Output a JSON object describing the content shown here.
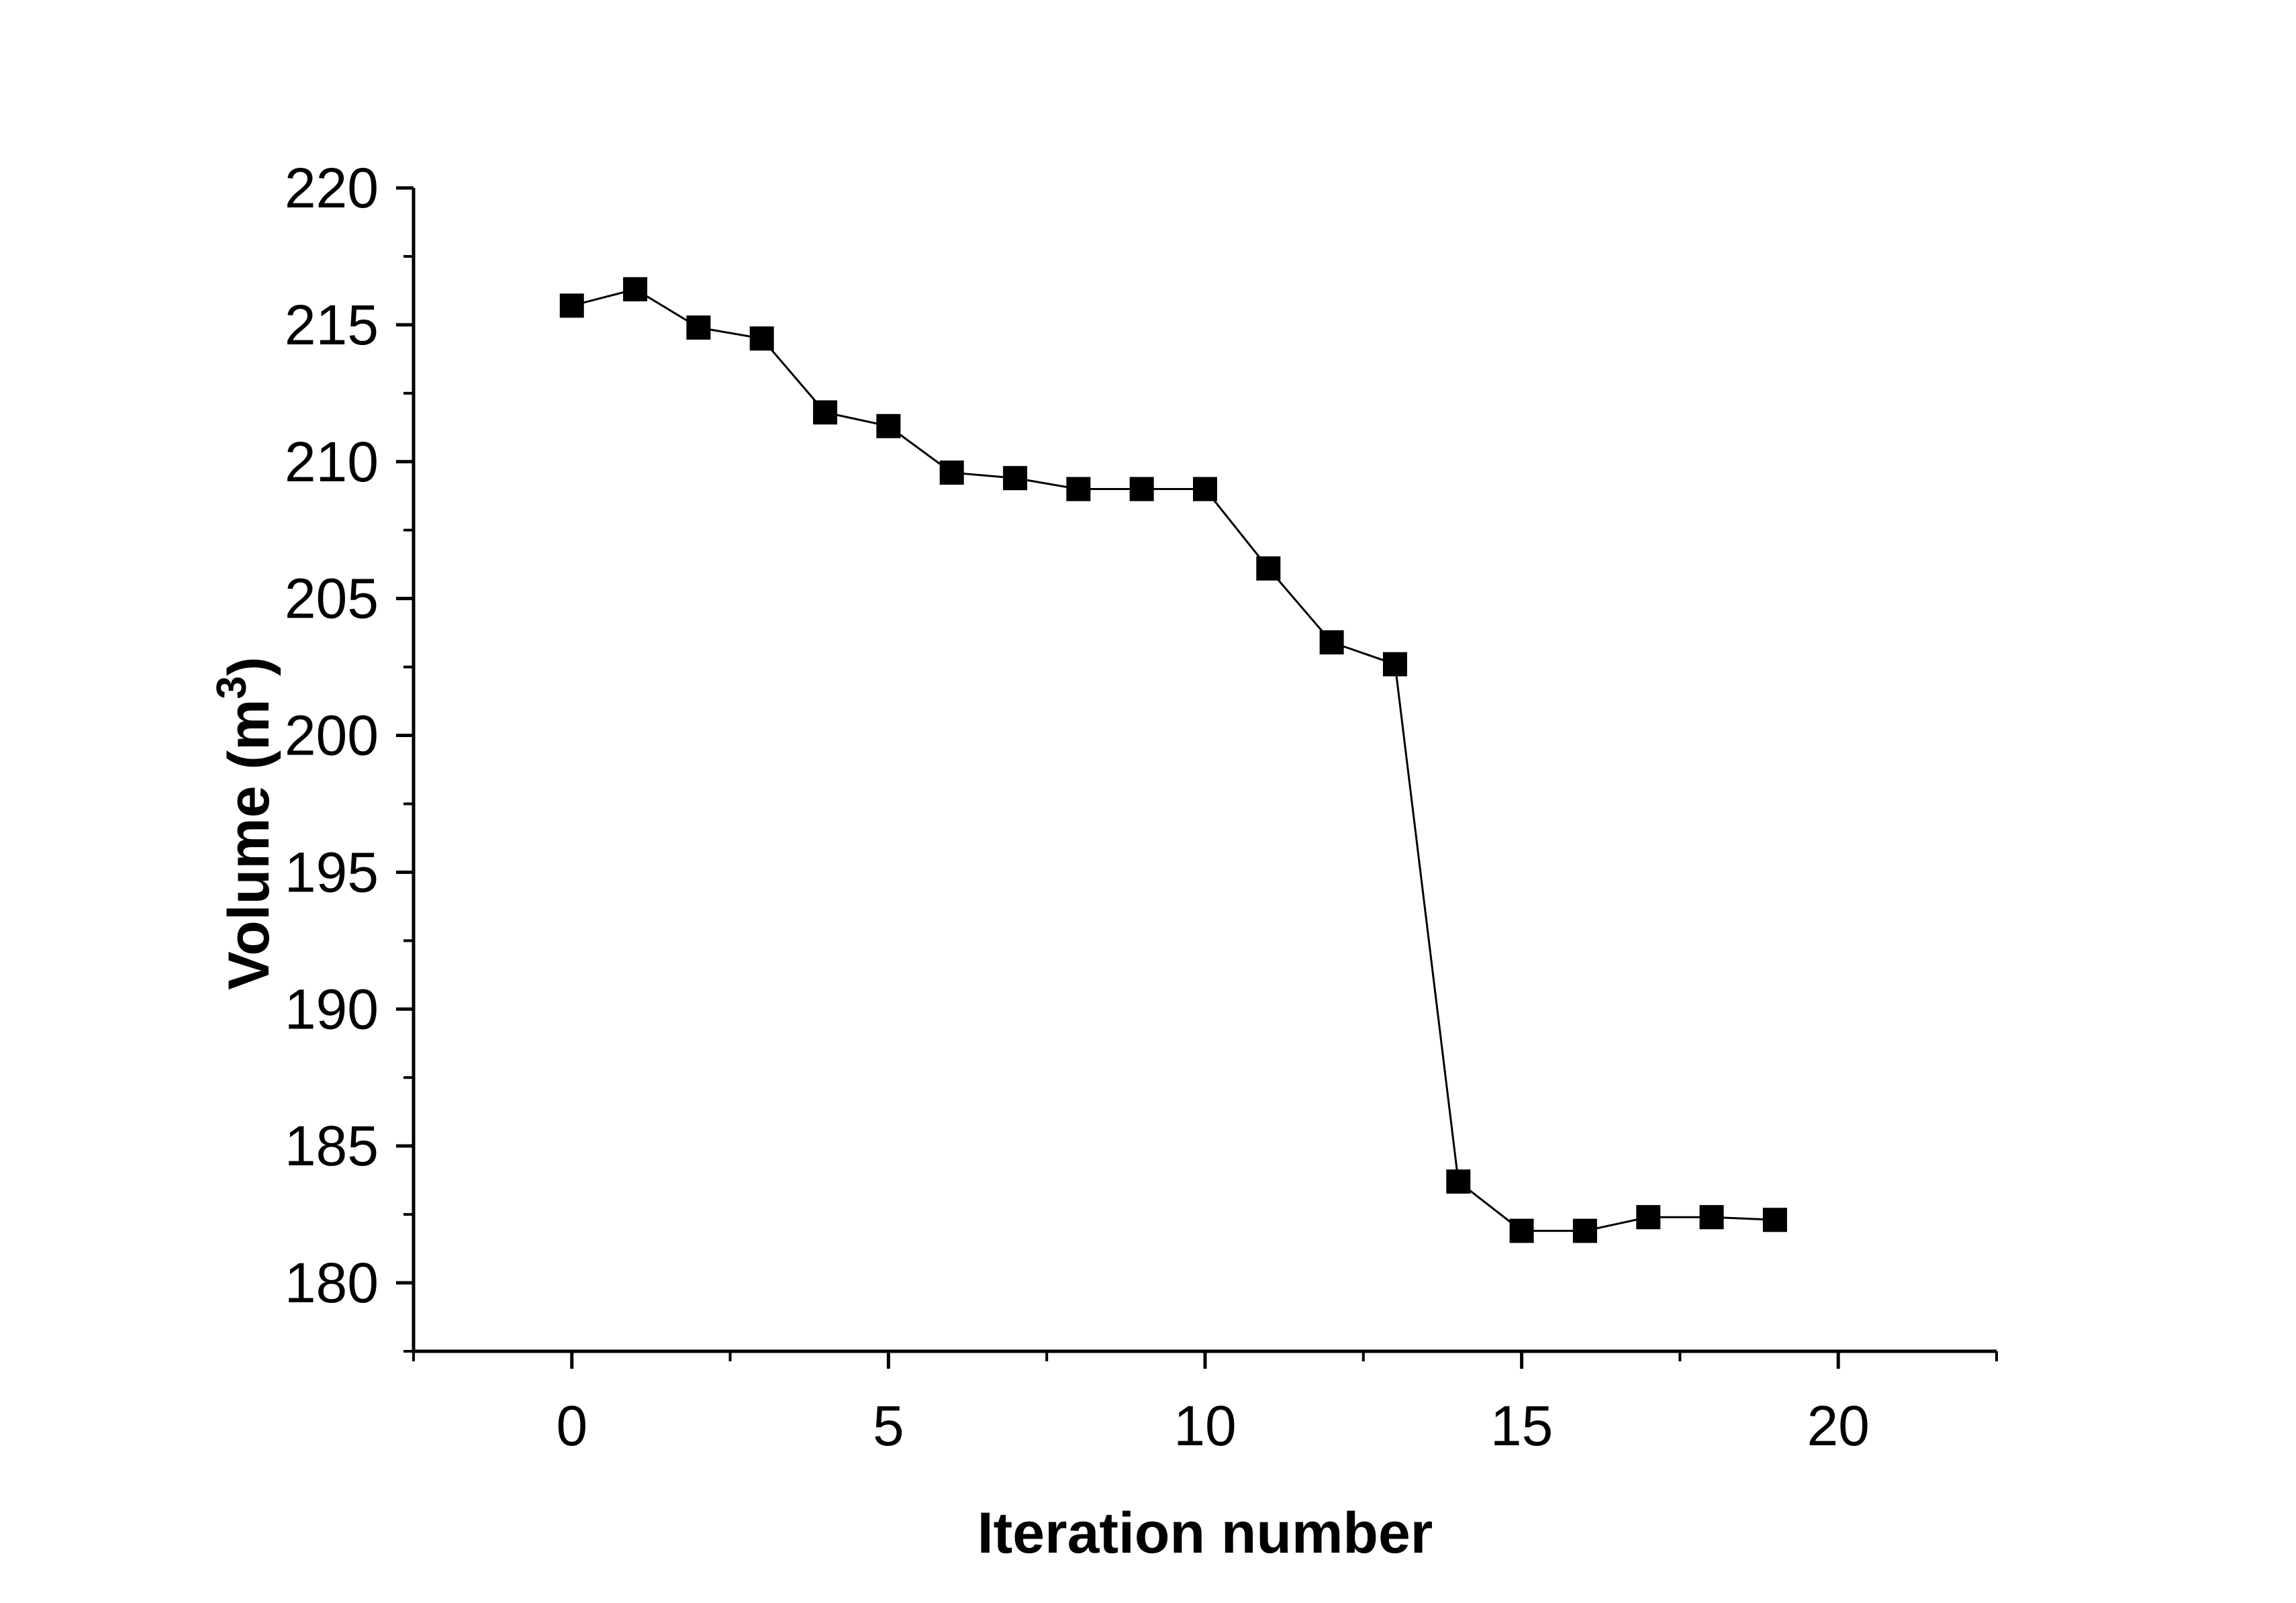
{
  "chart_data": {
    "type": "line",
    "title": "",
    "xlabel": "Iteration number",
    "ylabel": {
      "main": "Volume (m",
      "superscript": "3",
      "close": ")"
    },
    "xlim": [
      -2.5,
      22.5
    ],
    "ylim": [
      177.5,
      220
    ],
    "xticks": [
      0,
      5,
      10,
      15,
      20
    ],
    "yticks": [
      180,
      185,
      190,
      195,
      200,
      205,
      210,
      215,
      220
    ],
    "x_minor_step": 2.5,
    "y_minor_step": 2.5,
    "grid": false,
    "legend": "none",
    "marker": "filled-square",
    "color": "#000000",
    "series": [
      {
        "x": [
          0,
          1,
          2,
          3,
          4,
          5,
          6,
          7,
          8,
          9,
          10,
          11,
          12,
          13,
          14,
          15,
          16,
          17,
          18,
          19
        ],
        "values": [
          215.7,
          216.3,
          214.9,
          214.5,
          211.8,
          211.3,
          209.6,
          209.4,
          209.0,
          209.0,
          209.0,
          206.1,
          203.4,
          202.6,
          183.7,
          181.9,
          181.9,
          182.4,
          182.4,
          182.3
        ]
      }
    ]
  }
}
